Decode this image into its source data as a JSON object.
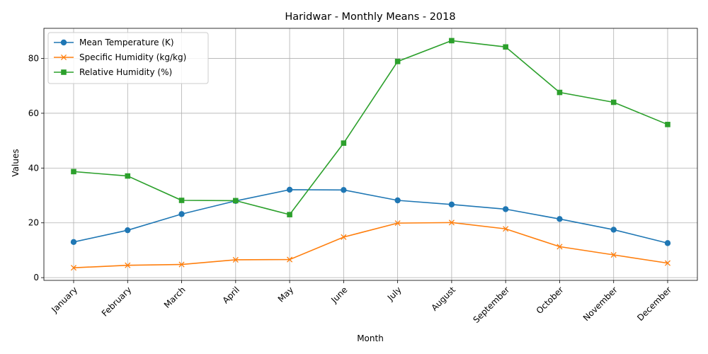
{
  "chart_data": {
    "type": "line",
    "title": "Haridwar - Monthly Means - 2018",
    "xlabel": "Month",
    "ylabel": "Values",
    "categories": [
      "January",
      "February",
      "March",
      "April",
      "May",
      "June",
      "July",
      "August",
      "September",
      "October",
      "November",
      "December"
    ],
    "ylim": [
      -1,
      91
    ],
    "yticks": [
      0,
      20,
      40,
      60,
      80
    ],
    "grid": true,
    "legend_position": "top-left",
    "series": [
      {
        "name": "Mean Temperature (K)",
        "color": "#1f77b4",
        "marker": "circle",
        "values": [
          13.0,
          17.3,
          23.2,
          28.0,
          32.1,
          32.0,
          28.2,
          26.7,
          25.0,
          21.4,
          17.5,
          12.6
        ]
      },
      {
        "name": "Specific Humidity (kg/kg)",
        "color": "#ff7f0e",
        "marker": "x",
        "values": [
          3.6,
          4.5,
          4.8,
          6.5,
          6.6,
          14.8,
          19.9,
          20.1,
          17.8,
          11.3,
          8.3,
          5.3
        ]
      },
      {
        "name": "Relative Humidity (%)",
        "color": "#2ca02c",
        "marker": "square",
        "values": [
          38.7,
          37.1,
          28.2,
          28.1,
          23.0,
          49.1,
          78.9,
          86.5,
          84.2,
          67.6,
          64.0,
          55.9
        ]
      }
    ]
  }
}
